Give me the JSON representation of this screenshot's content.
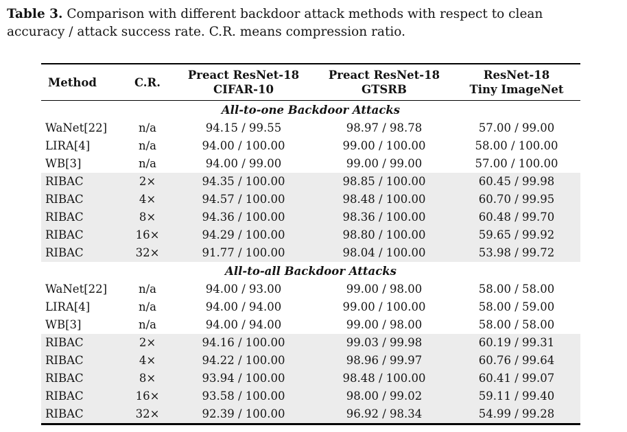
{
  "caption": {
    "label": "Table 3.",
    "line1": "Comparison with different backdoor attack methods with respect to clean",
    "line2": "accuracy / attack success rate. C.R. means compression ratio."
  },
  "table": {
    "highlight_color": "#ececec",
    "columns": [
      {
        "label": "Method"
      },
      {
        "label": "C.R."
      },
      {
        "line1": "Preact ResNet-18",
        "line2": "CIFAR-10"
      },
      {
        "line1": "Preact ResNet-18",
        "line2": "GTSRB"
      },
      {
        "line1": "ResNet-18",
        "line2": "Tiny ImageNet"
      }
    ],
    "sections": [
      {
        "title": "All-to-one Backdoor Attacks",
        "rows": [
          {
            "method": "WaNet[22]",
            "cr": "n/a",
            "cifar10": "94.15 / 99.55",
            "gtsrb": "98.97 / 98.78",
            "tiny": "57.00 / 99.00",
            "highlight": false
          },
          {
            "method": "LIRA[4]",
            "cr": "n/a",
            "cifar10": "94.00 / 100.00",
            "gtsrb": "99.00 / 100.00",
            "tiny": "58.00 / 100.00",
            "highlight": false
          },
          {
            "method": "WB[3]",
            "cr": "n/a",
            "cifar10": "94.00 / 99.00",
            "gtsrb": "99.00 / 99.00",
            "tiny": "57.00 / 100.00",
            "highlight": false
          },
          {
            "method": "RIBAC",
            "cr": "2×",
            "cifar10": "94.35 / 100.00",
            "gtsrb": "98.85 / 100.00",
            "tiny": "60.45 / 99.98",
            "highlight": true
          },
          {
            "method": "RIBAC",
            "cr": "4×",
            "cifar10": "94.57 / 100.00",
            "gtsrb": "98.48 / 100.00",
            "tiny": "60.70 / 99.95",
            "highlight": true
          },
          {
            "method": "RIBAC",
            "cr": "8×",
            "cifar10": "94.36 / 100.00",
            "gtsrb": "98.36 / 100.00",
            "tiny": "60.48 / 99.70",
            "highlight": true
          },
          {
            "method": "RIBAC",
            "cr": "16×",
            "cifar10": "94.29 / 100.00",
            "gtsrb": "98.80 / 100.00",
            "tiny": "59.65 / 99.92",
            "highlight": true
          },
          {
            "method": "RIBAC",
            "cr": "32×",
            "cifar10": "91.77 / 100.00",
            "gtsrb": "98.04 / 100.00",
            "tiny": "53.98 / 99.72",
            "highlight": true
          }
        ]
      },
      {
        "title": "All-to-all Backdoor Attacks",
        "rows": [
          {
            "method": "WaNet[22]",
            "cr": "n/a",
            "cifar10": "94.00 / 93.00",
            "gtsrb": "99.00 / 98.00",
            "tiny": "58.00 / 58.00",
            "highlight": false
          },
          {
            "method": "LIRA[4]",
            "cr": "n/a",
            "cifar10": "94.00 / 94.00",
            "gtsrb": "99.00 / 100.00",
            "tiny": "58.00 / 59.00",
            "highlight": false
          },
          {
            "method": "WB[3]",
            "cr": "n/a",
            "cifar10": "94.00 / 94.00",
            "gtsrb": "99.00 / 98.00",
            "tiny": "58.00 / 58.00",
            "highlight": false
          },
          {
            "method": "RIBAC",
            "cr": "2×",
            "cifar10": "94.16 / 100.00",
            "gtsrb": "99.03 / 99.98",
            "tiny": "60.19 / 99.31",
            "highlight": true
          },
          {
            "method": "RIBAC",
            "cr": "4×",
            "cifar10": "94.22 / 100.00",
            "gtsrb": "98.96 / 99.97",
            "tiny": "60.76 / 99.64",
            "highlight": true
          },
          {
            "method": "RIBAC",
            "cr": "8×",
            "cifar10": "93.94 / 100.00",
            "gtsrb": "98.48 / 100.00",
            "tiny": "60.41 / 99.07",
            "highlight": true
          },
          {
            "method": "RIBAC",
            "cr": "16×",
            "cifar10": "93.58 / 100.00",
            "gtsrb": "98.00 / 99.02",
            "tiny": "59.11 / 99.40",
            "highlight": true
          },
          {
            "method": "RIBAC",
            "cr": "32×",
            "cifar10": "92.39 / 100.00",
            "gtsrb": "96.92 / 98.34",
            "tiny": "54.99 / 99.28",
            "highlight": true
          }
        ]
      }
    ]
  }
}
